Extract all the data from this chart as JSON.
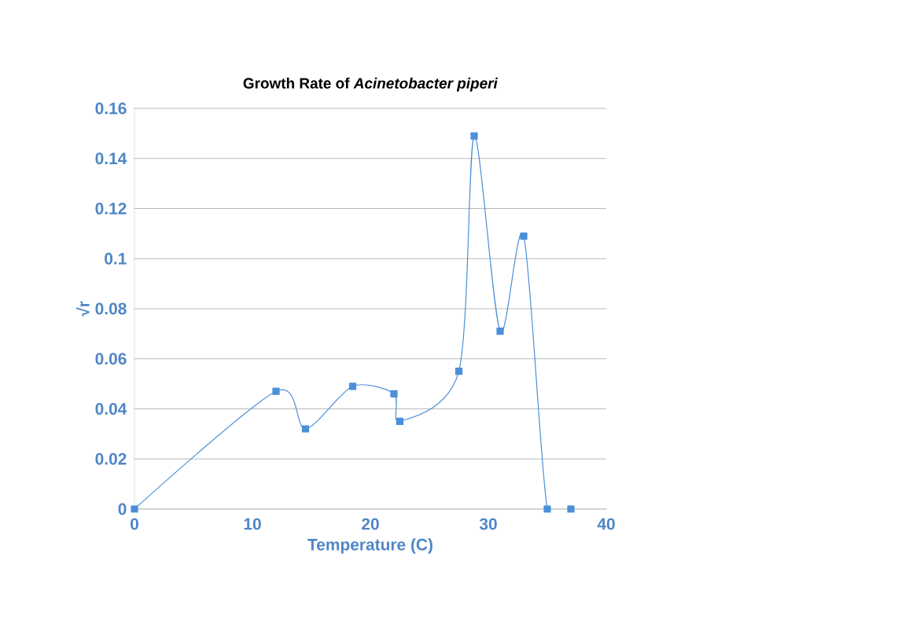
{
  "chart_data": {
    "type": "line",
    "title": "Growth Rate of *Acinetobacter piperi*",
    "xlabel": "Temperature (C)",
    "ylabel": "√r",
    "x": [
      0,
      12,
      14.5,
      18.5,
      22,
      22.5,
      27.5,
      28.8,
      31,
      33,
      35,
      37
    ],
    "series": [
      {
        "color": "#4a8fd8",
        "values": [
          0,
          0.047,
          0.032,
          0.049,
          0.046,
          0.035,
          0.055,
          0.149,
          0.071,
          0.109,
          0,
          0
        ]
      }
    ],
    "xlim": [
      0,
      40
    ],
    "xticks": [
      0,
      10,
      20,
      30,
      40
    ],
    "ylim": [
      0,
      0.16
    ],
    "yticks": [
      0,
      0.02,
      0.04,
      0.06,
      0.08,
      0.1,
      0.12,
      0.14,
      0.16
    ],
    "grid": "y",
    "marker": "square",
    "line_style": "solid"
  }
}
